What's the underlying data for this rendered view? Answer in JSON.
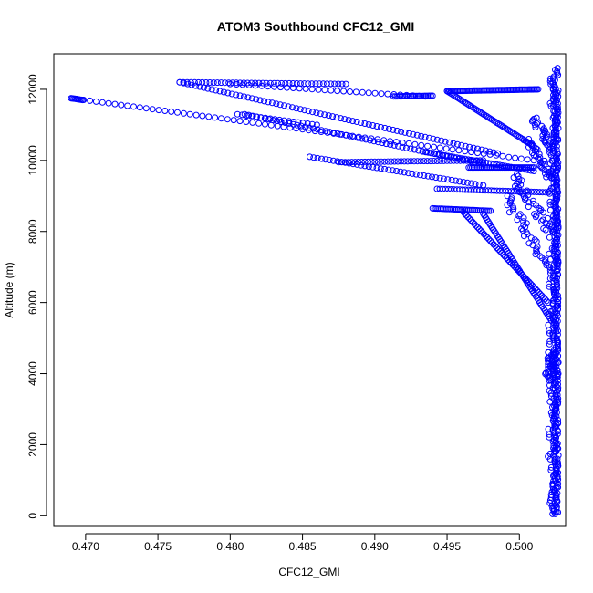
{
  "chart_data": {
    "type": "scatter",
    "title": "ATOM3 Southbound CFC12_GMI",
    "xlabel": "CFC12_GMI",
    "ylabel": "Altitude (m)",
    "xlim": [
      0.4678,
      0.5032
    ],
    "ylim": [
      -300,
      13000
    ],
    "x_ticks": [
      0.47,
      0.475,
      0.48,
      0.485,
      0.49,
      0.495,
      0.5
    ],
    "x_tick_labels": [
      "0.470",
      "0.475",
      "0.480",
      "0.485",
      "0.490",
      "0.495",
      "0.500"
    ],
    "y_ticks": [
      0,
      2000,
      4000,
      6000,
      8000,
      10000,
      12000
    ],
    "y_tick_labels": [
      "0",
      "2000",
      "4000",
      "6000",
      "8000",
      "10000",
      "12000"
    ],
    "grid": false,
    "marker": "open-circle",
    "color": "#0000ff",
    "series": [
      {
        "segments": [
          {
            "from": [
              0.5025,
              50
            ],
            "to": [
              0.5025,
              12600
            ],
            "n": 260,
            "jitter": 0.0002
          },
          {
            "from": [
              0.5022,
              50
            ],
            "to": [
              0.5024,
              12300
            ],
            "n": 160,
            "jitter": 0.0003
          },
          {
            "from": [
              0.5026,
              100
            ],
            "to": [
              0.5026,
              12000
            ],
            "n": 120,
            "jitter": 0.0001
          },
          {
            "from": [
              0.502,
              3800
            ],
            "to": [
              0.5023,
              4600
            ],
            "n": 30,
            "jitter": 0.0003
          },
          {
            "from": [
              0.469,
              11750
            ],
            "to": [
              0.501,
              10000
            ],
            "n": 75,
            "jitter": 0
          },
          {
            "from": [
              0.469,
              11750
            ],
            "to": [
              0.4698,
              11700
            ],
            "n": 10,
            "jitter": 0
          },
          {
            "from": [
              0.4765,
              12200
            ],
            "to": [
              0.488,
              12150
            ],
            "n": 45,
            "jitter": 0
          },
          {
            "from": [
              0.48,
              12150
            ],
            "to": [
              0.4935,
              11800
            ],
            "n": 32,
            "jitter": 0
          },
          {
            "from": [
              0.4805,
              11300
            ],
            "to": [
              0.486,
              11000
            ],
            "n": 18,
            "jitter": 0
          },
          {
            "from": [
              0.481,
              11300
            ],
            "to": [
              0.4975,
              9900
            ],
            "n": 60,
            "jitter": 0
          },
          {
            "from": [
              0.4765,
              12200
            ],
            "to": [
              0.4985,
              10200
            ],
            "n": 80,
            "jitter": 0
          },
          {
            "from": [
              0.4913,
              11800
            ],
            "to": [
              0.494,
              11820
            ],
            "n": 25,
            "jitter": 0
          },
          {
            "from": [
              0.495,
              11950
            ],
            "to": [
              0.5013,
              12000
            ],
            "n": 70,
            "jitter": 0
          },
          {
            "from": [
              0.495,
              11950
            ],
            "to": [
              0.501,
              10400
            ],
            "n": 55,
            "jitter": 0
          },
          {
            "from": [
              0.4855,
              10100
            ],
            "to": [
              0.4975,
              9300
            ],
            "n": 45,
            "jitter": 0
          },
          {
            "from": [
              0.4875,
              9950
            ],
            "to": [
              0.4975,
              10000
            ],
            "n": 45,
            "jitter": 0
          },
          {
            "from": [
              0.4933,
              10250
            ],
            "to": [
              0.501,
              9700
            ],
            "n": 40,
            "jitter": 0
          },
          {
            "from": [
              0.4943,
              9200
            ],
            "to": [
              0.502,
              9100
            ],
            "n": 40,
            "jitter": 0
          },
          {
            "from": [
              0.4965,
              9800
            ],
            "to": [
              0.501,
              9800
            ],
            "n": 40,
            "jitter": 0
          },
          {
            "from": [
              0.494,
              8650
            ],
            "to": [
              0.498,
              8580
            ],
            "n": 35,
            "jitter": 0
          },
          {
            "from": [
              0.496,
              8600
            ],
            "to": [
              0.502,
              6000
            ],
            "n": 55,
            "jitter": 0
          },
          {
            "from": [
              0.4975,
              8500
            ],
            "to": [
              0.5022,
              5500
            ],
            "n": 55,
            "jitter": 0
          },
          {
            "from": [
              0.499,
              9000
            ],
            "to": [
              0.502,
              7000
            ],
            "n": 40,
            "jitter": 0.0004
          },
          {
            "from": [
              0.4995,
              9600
            ],
            "to": [
              0.5022,
              8000
            ],
            "n": 40,
            "jitter": 0.0004
          },
          {
            "from": [
              0.5005,
              10600
            ],
            "to": [
              0.5022,
              9500
            ],
            "n": 35,
            "jitter": 0.0003
          },
          {
            "from": [
              0.501,
              11200
            ],
            "to": [
              0.5022,
              10400
            ],
            "n": 25,
            "jitter": 0.0003
          }
        ]
      }
    ]
  }
}
